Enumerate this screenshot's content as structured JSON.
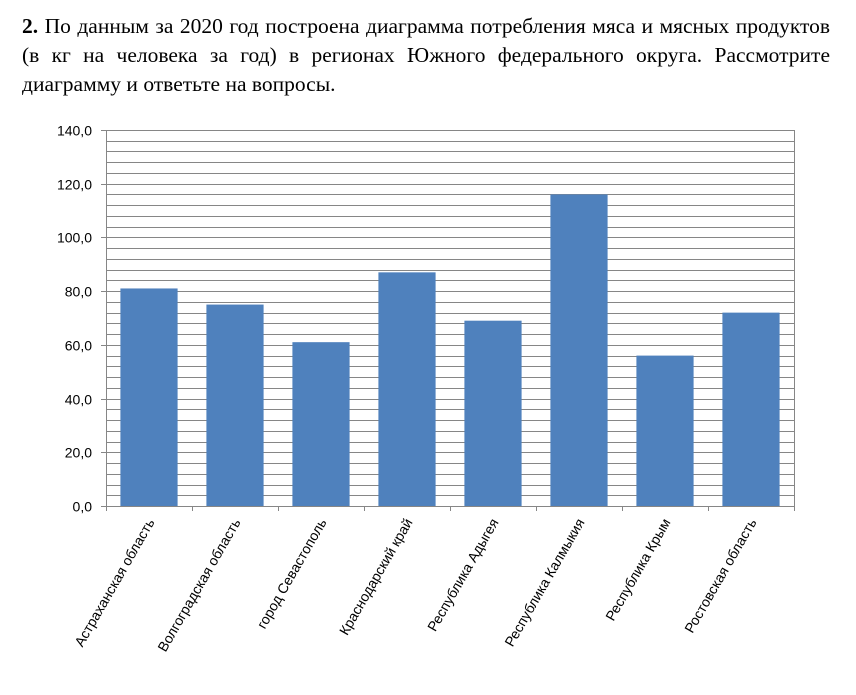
{
  "problem": {
    "number": "2.",
    "text": "По данным за 2020 год построена диаграмма потребления мяса и мясных продуктов (в кг на человека за год) в регионах Южного федерального округа. Рассмотрите диаграмму и ответьте на вопросы."
  },
  "chart_data": {
    "type": "bar",
    "categories": [
      "Астраханская область",
      "Волгоградская область",
      "город Севастополь",
      "Краснодарский край",
      "Республика Адыгея",
      "Республика Калмыкия",
      "Республика Крым",
      "Ростовская область"
    ],
    "values": [
      81,
      75,
      61,
      87,
      69,
      116,
      56,
      72
    ],
    "ylim": [
      0,
      140
    ],
    "yticks": [
      "0,0",
      "20,0",
      "40,0",
      "60,0",
      "80,0",
      "100,0",
      "120,0",
      "140,0"
    ],
    "grid": true,
    "minor_grid_step": 4,
    "bar_color": "#4f81bd",
    "grid_color": "#868686",
    "title": "",
    "xlabel": "",
    "ylabel": ""
  }
}
